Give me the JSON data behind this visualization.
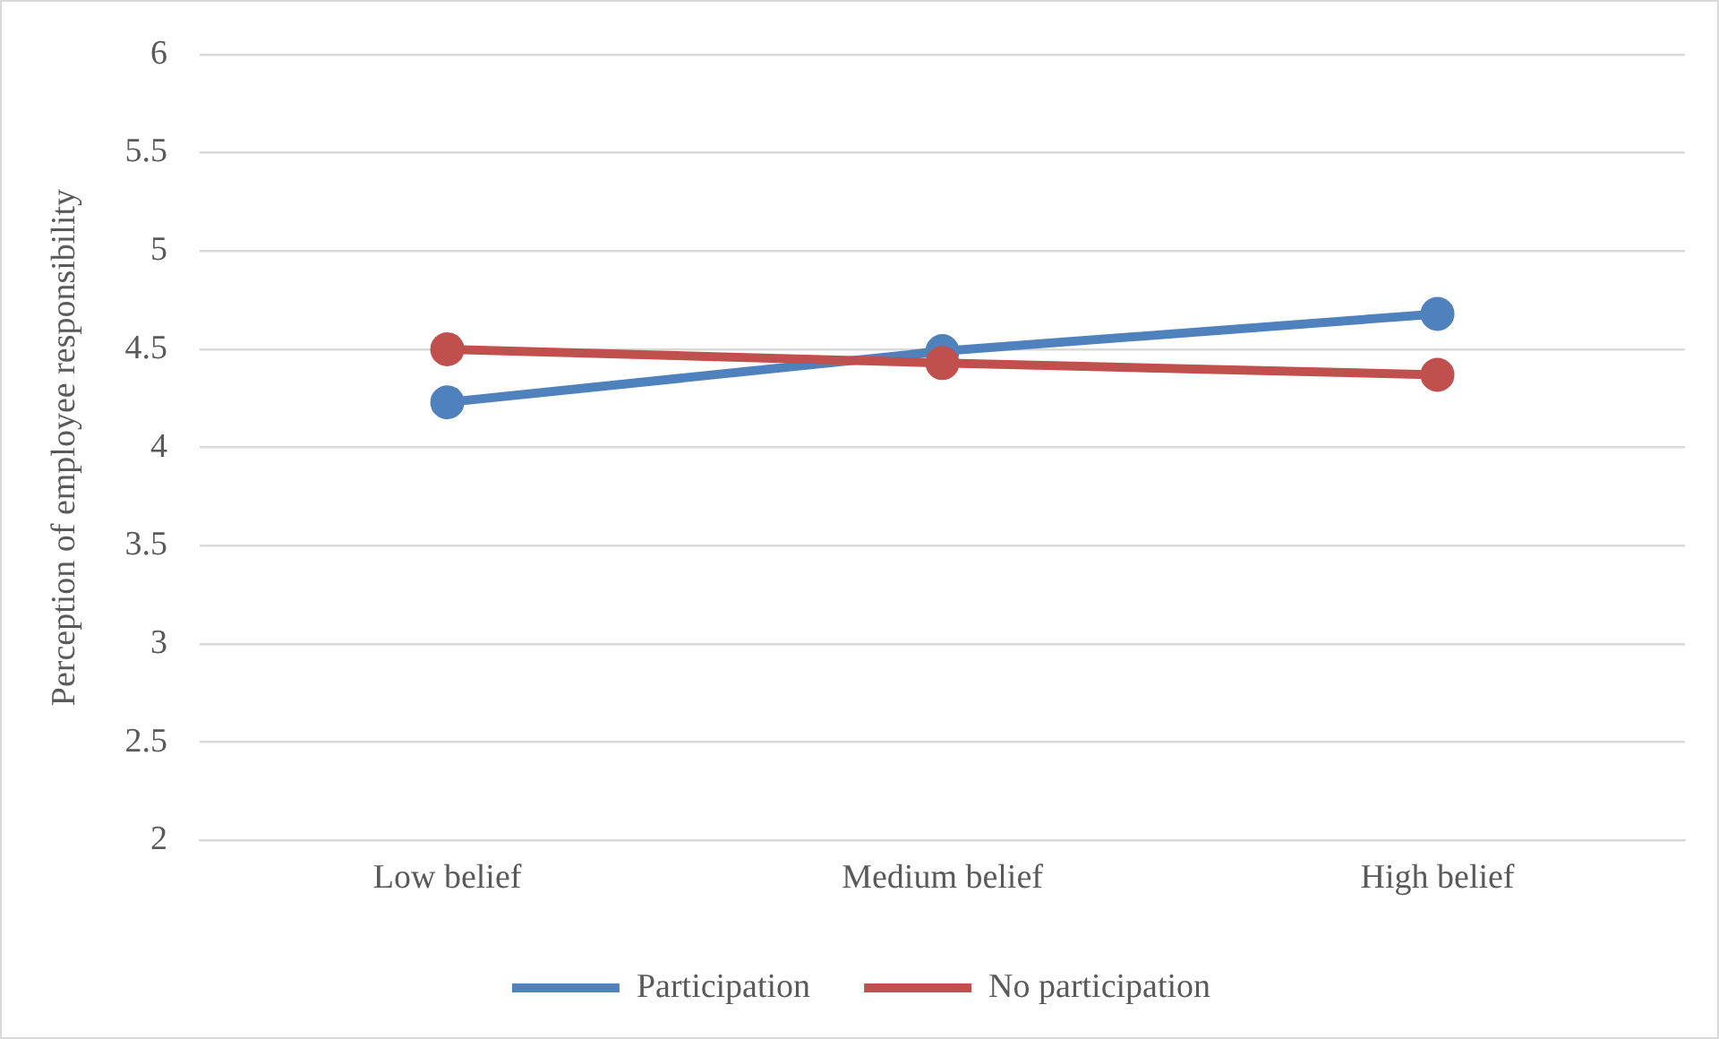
{
  "chart_data": {
    "type": "line",
    "ylabel": "Perception of employee responsibility",
    "categories": [
      "Low belief",
      "Medium belief",
      "High belief"
    ],
    "series": [
      {
        "name": "Participation",
        "color": "#4f81bd",
        "values": [
          4.23,
          4.49,
          4.68
        ]
      },
      {
        "name": "No participation",
        "color": "#c0504d",
        "values": [
          4.5,
          4.43,
          4.37
        ]
      }
    ],
    "ylim": [
      2,
      6
    ],
    "yticks": [
      2,
      2.5,
      3,
      3.5,
      4,
      4.5,
      5,
      5.5,
      6
    ],
    "grid": "y",
    "legend": "bottom",
    "marker": "circle",
    "line_style": "solid"
  }
}
